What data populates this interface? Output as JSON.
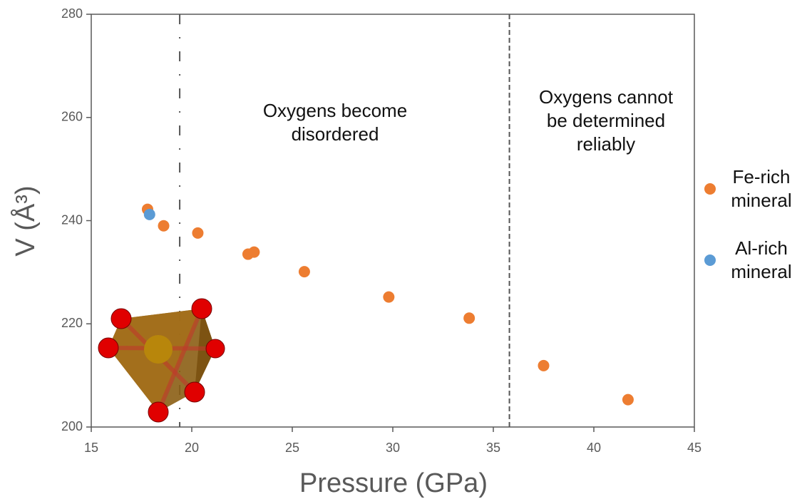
{
  "chart_data": {
    "type": "scatter",
    "x_label": "Pressure (GPa)",
    "y_label": "V (Å³)",
    "xlim": [
      15,
      45
    ],
    "xticks": [
      15,
      20,
      25,
      30,
      35,
      40,
      45
    ],
    "ylim": [
      200,
      280
    ],
    "yticks": [
      200,
      220,
      240,
      260,
      280
    ],
    "series": [
      {
        "name": "Fe-rich mineral",
        "color": "#ed7d31",
        "x": [
          17.8,
          18.6,
          20.3,
          22.8,
          23.1,
          25.6,
          29.8,
          33.8,
          37.5,
          41.7
        ],
        "values": [
          242.2,
          239.0,
          237.6,
          233.5,
          233.9,
          230.1,
          225.2,
          221.1,
          211.9,
          205.3
        ]
      },
      {
        "name": "Al-rich mineral",
        "color": "#5b9bd5",
        "x": [
          17.9
        ],
        "values": [
          241.2
        ]
      }
    ],
    "vlines": [
      {
        "x": 19.4,
        "style": "dashdot"
      },
      {
        "x": 35.8,
        "style": "dashed"
      }
    ],
    "annotations": [
      {
        "lines": [
          "Oxygens become",
          "disordered"
        ]
      },
      {
        "lines": [
          "Oxygens cannot",
          "be determined",
          "reliably"
        ]
      }
    ]
  }
}
